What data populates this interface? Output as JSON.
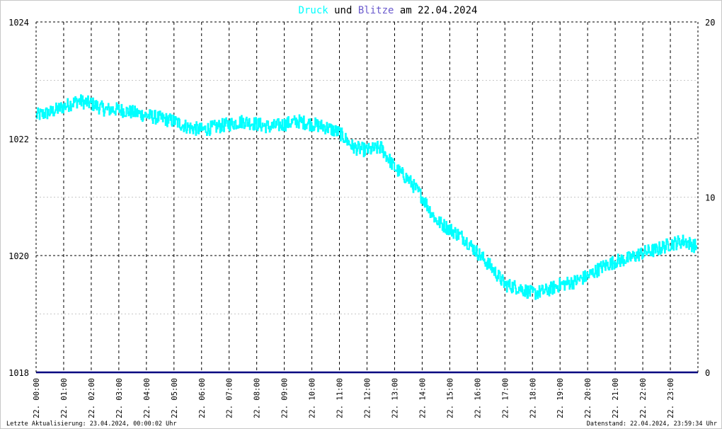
{
  "title": {
    "part1": "Druck",
    "part2": " und ",
    "part3": "Blitze",
    "part4": " am 22.04.2024"
  },
  "colors": {
    "druck": "#00ffff",
    "blitze": "#6a5acd",
    "baseline": "#000080",
    "text": "#000000",
    "grid": "#000000"
  },
  "footer": {
    "left": "Letzte Aktualisierung: 23.04.2024, 00:00:02 Uhr",
    "right": "Datenstand: 22.04.2024, 23:59:34 Uhr"
  },
  "chart_data": {
    "type": "line",
    "x_unit": "hours on 22.04.2024",
    "xlim": [
      0,
      24
    ],
    "y_left": {
      "ylim": [
        1018,
        1024
      ],
      "ticks": [
        1018,
        1020,
        1022,
        1024
      ]
    },
    "y_right": {
      "ylim": [
        0,
        20
      ],
      "ticks": [
        0,
        10,
        20
      ]
    },
    "x_ticks": [
      "22. 00:00",
      "22. 01:00",
      "22. 02:00",
      "22. 03:00",
      "22. 04:00",
      "22. 05:00",
      "22. 06:00",
      "22. 07:00",
      "22. 08:00",
      "22. 09:00",
      "22. 10:00",
      "22. 11:00",
      "22. 12:00",
      "22. 13:00",
      "22. 14:00",
      "22. 15:00",
      "22. 16:00",
      "22. 17:00",
      "22. 18:00",
      "22. 19:00",
      "22. 20:00",
      "22. 21:00",
      "22. 22:00",
      "22. 23:00"
    ],
    "grid": true,
    "series": [
      {
        "name": "Druck",
        "axis": "left",
        "color": "#00ffff",
        "x": [
          0.0,
          0.5,
          1.0,
          1.5,
          2.0,
          2.5,
          3.0,
          3.5,
          4.0,
          4.5,
          5.0,
          5.5,
          6.0,
          6.5,
          7.0,
          7.5,
          8.0,
          8.5,
          9.0,
          9.5,
          10.0,
          10.5,
          11.0,
          11.5,
          12.0,
          12.5,
          13.0,
          13.5,
          14.0,
          14.5,
          15.0,
          15.5,
          16.0,
          16.5,
          17.0,
          17.5,
          18.0,
          18.5,
          19.0,
          19.5,
          20.0,
          20.5,
          21.0,
          21.5,
          22.0,
          22.5,
          23.0,
          23.5,
          23.95
        ],
        "y": [
          1022.4,
          1022.45,
          1022.55,
          1022.65,
          1022.6,
          1022.5,
          1022.5,
          1022.45,
          1022.4,
          1022.35,
          1022.3,
          1022.2,
          1022.15,
          1022.2,
          1022.25,
          1022.3,
          1022.25,
          1022.2,
          1022.25,
          1022.3,
          1022.25,
          1022.2,
          1022.1,
          1021.85,
          1021.8,
          1021.85,
          1021.5,
          1021.3,
          1021.0,
          1020.6,
          1020.45,
          1020.3,
          1020.05,
          1019.8,
          1019.5,
          1019.45,
          1019.35,
          1019.4,
          1019.5,
          1019.55,
          1019.65,
          1019.8,
          1019.9,
          1019.95,
          1020.05,
          1020.1,
          1020.2,
          1020.25,
          1020.15
        ],
        "noise": 0.12
      },
      {
        "name": "Blitze",
        "axis": "right",
        "color": "#6a5acd",
        "x": [
          0,
          24
        ],
        "y": [
          0,
          0
        ]
      }
    ]
  }
}
